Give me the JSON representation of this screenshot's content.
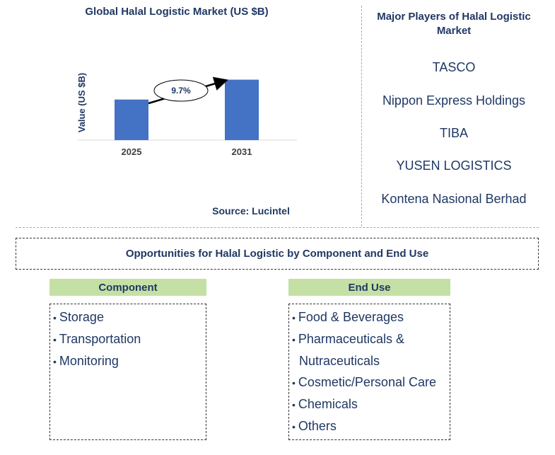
{
  "chart_data": {
    "type": "bar",
    "title": "Global Halal Logistic Market (US $B)",
    "ylabel": "Value (US $B)",
    "xlabel": "",
    "categories": [
      "2025",
      "2031"
    ],
    "values": [
      100,
      149
    ],
    "ylim": [
      0,
      150
    ],
    "color": "#4472c4",
    "annotation": "9.7%",
    "grid": false,
    "source": "Source: Lucintel"
  },
  "players": {
    "title": "Major Players of Halal Logistic Market",
    "items": [
      "TASCO",
      "Nippon Express Holdings",
      "TIBA",
      "YUSEN LOGISTICS",
      "Kontena Nasional Berhad"
    ]
  },
  "opportunities": {
    "title": "Opportunities for Halal Logistic by Component and End Use",
    "component": {
      "header": "Component",
      "items": [
        "Storage",
        "Transportation",
        "Monitoring"
      ]
    },
    "end_use": {
      "header": "End Use",
      "items": [
        "Food & Beverages",
        "Pharmaceuticals &",
        "Nutraceuticals",
        "Cosmetic/Personal Care",
        "Chemicals",
        "Others"
      ]
    }
  },
  "colors": {
    "title": "#1f3864",
    "bar": "#4472c4",
    "segment_header": "#c5e0a5",
    "divider": "#c9b037"
  },
  "bullet": "•"
}
